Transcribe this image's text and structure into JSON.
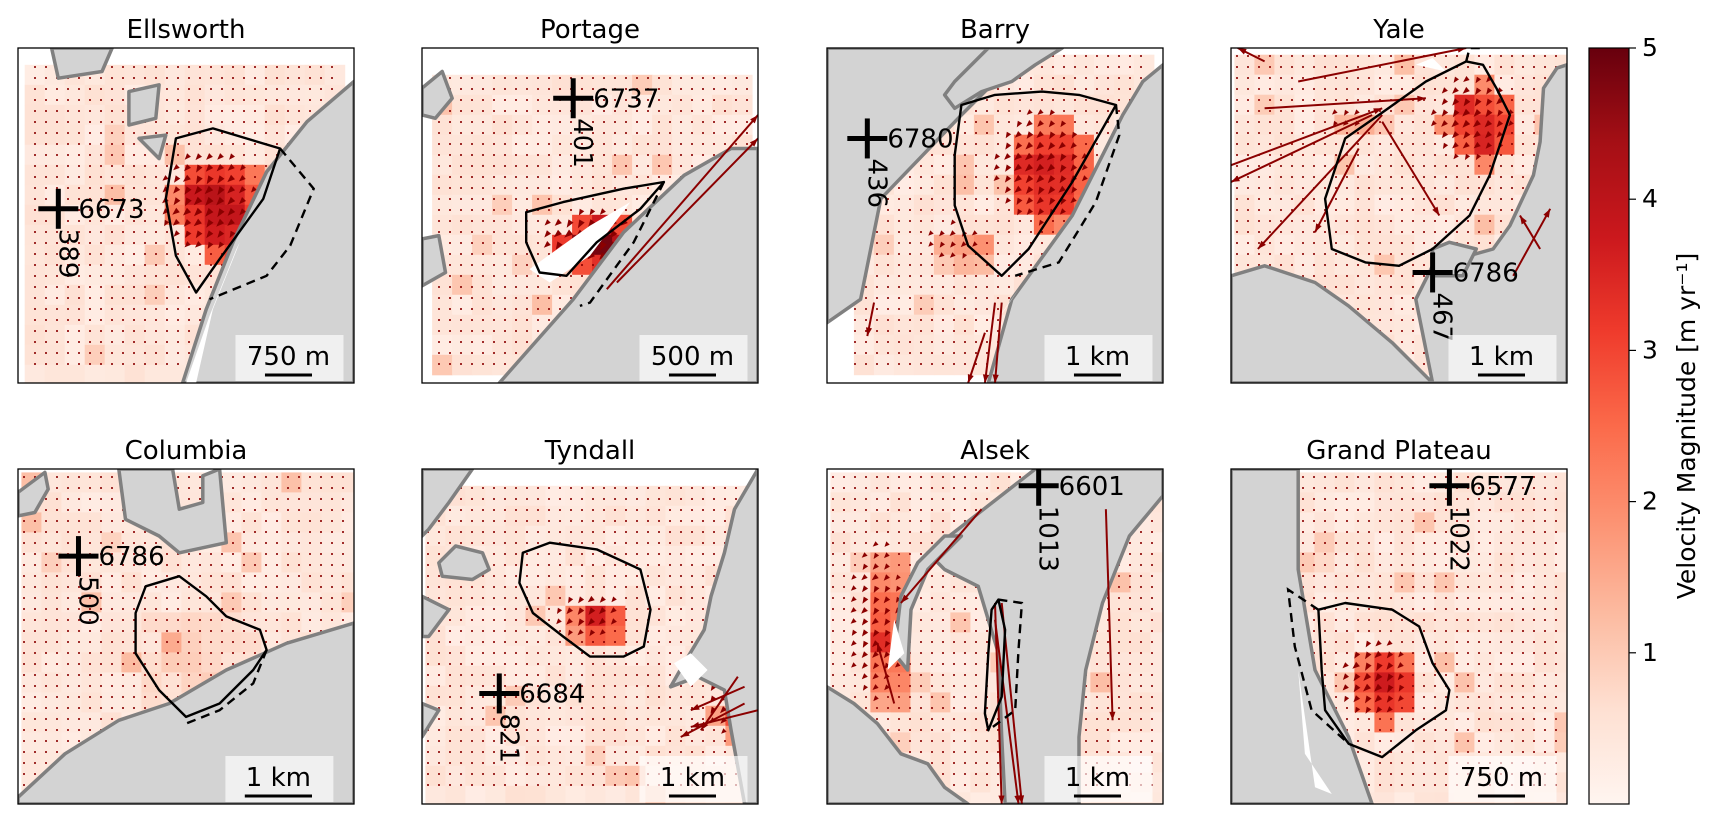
{
  "figure": {
    "colorbar": {
      "label": "Velocity Magnitude [m yr⁻¹]",
      "ticks": [
        1,
        2,
        3,
        4,
        5
      ],
      "range": [
        0,
        5
      ],
      "colormap": "Reds",
      "colors": [
        "#fff5f0",
        "#fee0d2",
        "#fcbba1",
        "#fc9272",
        "#fb6a4a",
        "#ef3b2c",
        "#cb181d",
        "#a50f15",
        "#67000d"
      ]
    },
    "land_color": "#d3d3d3",
    "coast_color": "#808080",
    "arrow_color": "#8b0000"
  },
  "chart_data": [
    {
      "type": "heatmap",
      "title": "Ellsworth",
      "scale_bar": "750 m",
      "station_left": "6673",
      "station_below": "389"
    },
    {
      "type": "heatmap",
      "title": "Portage",
      "scale_bar": "500 m",
      "station_left": "6737",
      "station_below": "401"
    },
    {
      "type": "heatmap",
      "title": "Barry",
      "scale_bar": "1 km",
      "station_left": "6780",
      "station_below": "436"
    },
    {
      "type": "heatmap",
      "title": "Yale",
      "scale_bar": "1 km",
      "station_left": "6786",
      "station_below": "467"
    },
    {
      "type": "heatmap",
      "title": "Columbia",
      "scale_bar": "1 km",
      "station_left": "6786",
      "station_below": "500"
    },
    {
      "type": "heatmap",
      "title": "Tyndall",
      "scale_bar": "1 km",
      "station_left": "6684",
      "station_below": "821"
    },
    {
      "type": "heatmap",
      "title": "Alsek",
      "scale_bar": "1 km",
      "station_left": "6601",
      "station_below": "1013"
    },
    {
      "type": "heatmap",
      "title": "Grand Plateau",
      "scale_bar": "750 m",
      "station_left": "6577",
      "station_below": "1022"
    }
  ]
}
